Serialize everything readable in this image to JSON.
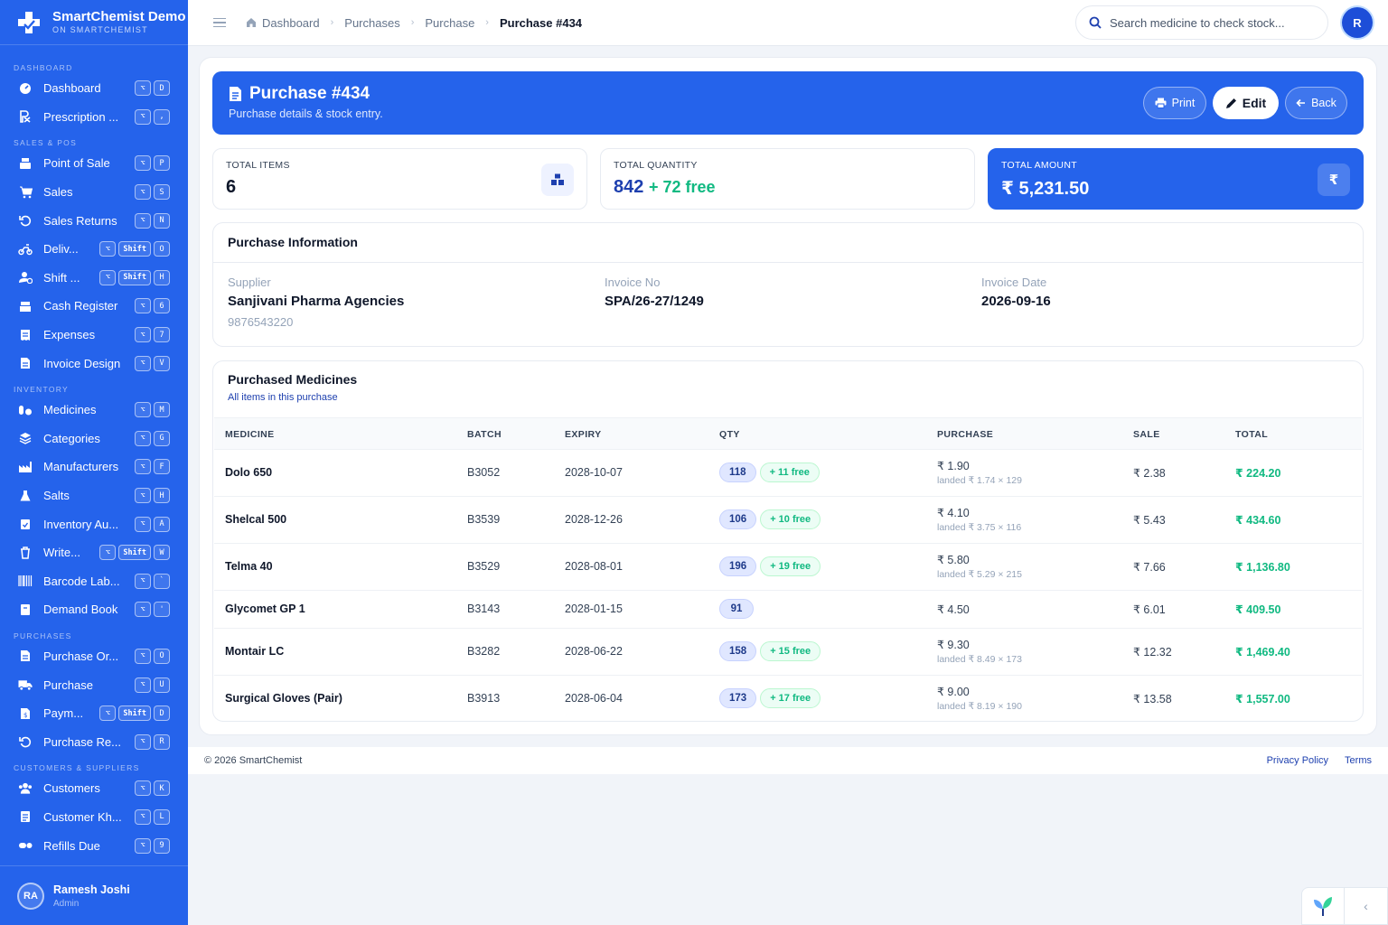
{
  "brand": {
    "name": "SmartChemist Demo",
    "sub": "ON SMARTCHEMIST"
  },
  "sidebar": {
    "sections": [
      {
        "title": "DASHBOARD",
        "items": [
          {
            "label": "Dashboard",
            "icon": "dashboard-icon",
            "keys": [
              "⌥",
              "D"
            ]
          },
          {
            "label": "Prescription ...",
            "icon": "prescription-icon",
            "keys": [
              "⌥",
              ","
            ]
          }
        ]
      },
      {
        "title": "SALES & POS",
        "items": [
          {
            "label": "Point of Sale",
            "icon": "register-icon",
            "keys": [
              "⌥",
              "P"
            ]
          },
          {
            "label": "Sales",
            "icon": "cart-icon",
            "keys": [
              "⌥",
              "S"
            ]
          },
          {
            "label": "Sales Returns",
            "icon": "return-icon",
            "keys": [
              "⌥",
              "N"
            ]
          },
          {
            "label": "Deliv...",
            "icon": "bike-icon",
            "keys": [
              "⌥",
              "Shift",
              "O"
            ]
          },
          {
            "label": "Shift ...",
            "icon": "user-clock-icon",
            "keys": [
              "⌥",
              "Shift",
              "H"
            ]
          },
          {
            "label": "Cash Register",
            "icon": "cash-register-icon",
            "keys": [
              "⌥",
              "6"
            ]
          },
          {
            "label": "Expenses",
            "icon": "receipt-icon",
            "keys": [
              "⌥",
              "7"
            ]
          },
          {
            "label": "Invoice Design",
            "icon": "invoice-icon",
            "keys": [
              "⌥",
              "V"
            ]
          }
        ]
      },
      {
        "title": "INVENTORY",
        "items": [
          {
            "label": "Medicines",
            "icon": "pills-icon",
            "keys": [
              "⌥",
              "M"
            ]
          },
          {
            "label": "Categories",
            "icon": "layers-icon",
            "keys": [
              "⌥",
              "G"
            ]
          },
          {
            "label": "Manufacturers",
            "icon": "industry-icon",
            "keys": [
              "⌥",
              "F"
            ]
          },
          {
            "label": "Salts",
            "icon": "flask-icon",
            "keys": [
              "⌥",
              "H"
            ]
          },
          {
            "label": "Inventory Au...",
            "icon": "audit-icon",
            "keys": [
              "⌥",
              "A"
            ]
          },
          {
            "label": "Write...",
            "icon": "trash-icon",
            "keys": [
              "⌥",
              "Shift",
              "W"
            ]
          },
          {
            "label": "Barcode Lab...",
            "icon": "barcode-icon",
            "keys": [
              "⌥",
              "`"
            ]
          },
          {
            "label": "Demand Book",
            "icon": "book-icon",
            "keys": [
              "⌥",
              "'"
            ]
          }
        ]
      },
      {
        "title": "PURCHASES",
        "items": [
          {
            "label": "Purchase Or...",
            "icon": "document-icon",
            "keys": [
              "⌥",
              "O"
            ]
          },
          {
            "label": "Purchase",
            "icon": "truck-icon",
            "keys": [
              "⌥",
              "U"
            ]
          },
          {
            "label": "Paym...",
            "icon": "payment-icon",
            "keys": [
              "⌥",
              "Shift",
              "D"
            ]
          },
          {
            "label": "Purchase Re...",
            "icon": "return-icon",
            "keys": [
              "⌥",
              "R"
            ]
          }
        ]
      },
      {
        "title": "CUSTOMERS & SUPPLIERS",
        "items": [
          {
            "label": "Customers",
            "icon": "users-icon",
            "keys": [
              "⌥",
              "K"
            ]
          },
          {
            "label": "Customer Kh...",
            "icon": "ledger-icon",
            "keys": [
              "⌥",
              "L"
            ]
          },
          {
            "label": "Refills Due",
            "icon": "capsule-icon",
            "keys": [
              "⌥",
              "9"
            ]
          }
        ]
      }
    ],
    "user": {
      "initials": "RA",
      "name": "Ramesh Joshi",
      "role": "Admin"
    }
  },
  "topbar": {
    "breadcrumb": [
      "Dashboard",
      "Purchases",
      "Purchase",
      "Purchase #434"
    ],
    "search_placeholder": "Search medicine to check stock...",
    "avatar_initial": "R"
  },
  "hero": {
    "title": "Purchase #434",
    "subtitle": "Purchase details & stock entry.",
    "print_label": "Print",
    "edit_label": "Edit",
    "back_label": "Back"
  },
  "stats": {
    "items_label": "TOTAL ITEMS",
    "items_value": "6",
    "qty_label": "TOTAL QUANTITY",
    "qty_value": "842",
    "qty_free": "+ 72 free",
    "amount_label": "TOTAL AMOUNT",
    "amount_value": "₹ 5,231.50",
    "amount_icon": "₹"
  },
  "info": {
    "title": "Purchase Information",
    "supplier_label": "Supplier",
    "supplier_value": "Sanjivani Pharma Agencies",
    "supplier_phone": "9876543220",
    "invoice_no_label": "Invoice No",
    "invoice_no_value": "SPA/26-27/1249",
    "invoice_date_label": "Invoice Date",
    "invoice_date_value": "2026-09-16"
  },
  "table": {
    "title": "Purchased Medicines",
    "subtitle": "All items in this purchase",
    "headers": [
      "MEDICINE",
      "BATCH",
      "EXPIRY",
      "QTY",
      "PURCHASE",
      "SALE",
      "TOTAL"
    ],
    "rows": [
      {
        "medicine": "Dolo 650",
        "batch": "B3052",
        "expiry": "2028-10-07",
        "qty": "118",
        "free": "+ 11 free",
        "purchase": "₹ 1.90",
        "landed": "landed ₹ 1.74 × 129",
        "sale": "₹ 2.38",
        "total": "₹ 224.20"
      },
      {
        "medicine": "Shelcal 500",
        "batch": "B3539",
        "expiry": "2028-12-26",
        "qty": "106",
        "free": "+ 10 free",
        "purchase": "₹ 4.10",
        "landed": "landed ₹ 3.75 × 116",
        "sale": "₹ 5.43",
        "total": "₹ 434.60"
      },
      {
        "medicine": "Telma 40",
        "batch": "B3529",
        "expiry": "2028-08-01",
        "qty": "196",
        "free": "+ 19 free",
        "purchase": "₹ 5.80",
        "landed": "landed ₹ 5.29 × 215",
        "sale": "₹ 7.66",
        "total": "₹ 1,136.80"
      },
      {
        "medicine": "Glycomet GP 1",
        "batch": "B3143",
        "expiry": "2028-01-15",
        "qty": "91",
        "free": "",
        "purchase": "₹ 4.50",
        "landed": "",
        "sale": "₹ 6.01",
        "total": "₹ 409.50"
      },
      {
        "medicine": "Montair LC",
        "batch": "B3282",
        "expiry": "2028-06-22",
        "qty": "158",
        "free": "+ 15 free",
        "purchase": "₹ 9.30",
        "landed": "landed ₹ 8.49 × 173",
        "sale": "₹ 12.32",
        "total": "₹ 1,469.40"
      },
      {
        "medicine": "Surgical Gloves (Pair)",
        "batch": "B3913",
        "expiry": "2028-06-04",
        "qty": "173",
        "free": "+ 17 free",
        "purchase": "₹ 9.00",
        "landed": "landed ₹ 8.19 × 190",
        "sale": "₹ 13.58",
        "total": "₹ 1,557.00"
      }
    ]
  },
  "footer": {
    "copyright": "© 2026 SmartChemist",
    "privacy": "Privacy Policy",
    "terms": "Terms"
  },
  "colors": {
    "primary": "#2563eb",
    "success": "#10b981",
    "text": "#0f172a"
  }
}
